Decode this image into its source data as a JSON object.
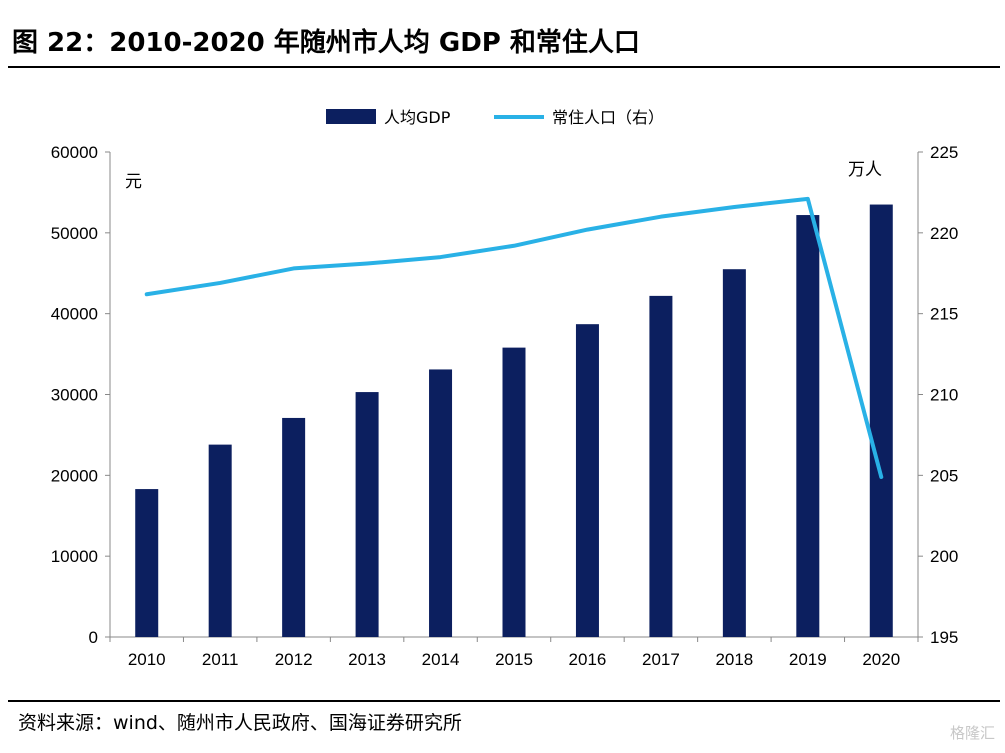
{
  "title": "图 22：2010-2020 年随州市人均 GDP 和常住人口",
  "source": "资料来源：wind、随州市人民政府、国海证券研究所",
  "watermark": "格隆汇",
  "chart_data": {
    "type": "bar",
    "categories": [
      "2010",
      "2011",
      "2012",
      "2013",
      "2014",
      "2015",
      "2016",
      "2017",
      "2018",
      "2019",
      "2020"
    ],
    "series": [
      {
        "name": "人均GDP",
        "type": "bar",
        "axis": "left",
        "color": "#0c1f5f",
        "values": [
          18300,
          23800,
          27100,
          30300,
          33100,
          35800,
          38700,
          42200,
          45500,
          52200,
          53500
        ]
      },
      {
        "name": "常住人口（右）",
        "type": "line",
        "axis": "right",
        "color": "#29b1e6",
        "values": [
          216.2,
          216.9,
          217.8,
          218.1,
          218.5,
          219.2,
          220.2,
          221.0,
          221.6,
          222.1,
          204.9
        ]
      }
    ],
    "left_axis": {
      "unit": "元",
      "ylim": [
        0,
        60000
      ],
      "ticks": [
        "0",
        "10000",
        "20000",
        "30000",
        "40000",
        "50000",
        "60000"
      ]
    },
    "right_axis": {
      "unit": "万人",
      "ylim": [
        195,
        225
      ],
      "ticks": [
        "195",
        "200",
        "205",
        "210",
        "215",
        "220",
        "225"
      ]
    },
    "legend": "top-center",
    "grid": false
  }
}
